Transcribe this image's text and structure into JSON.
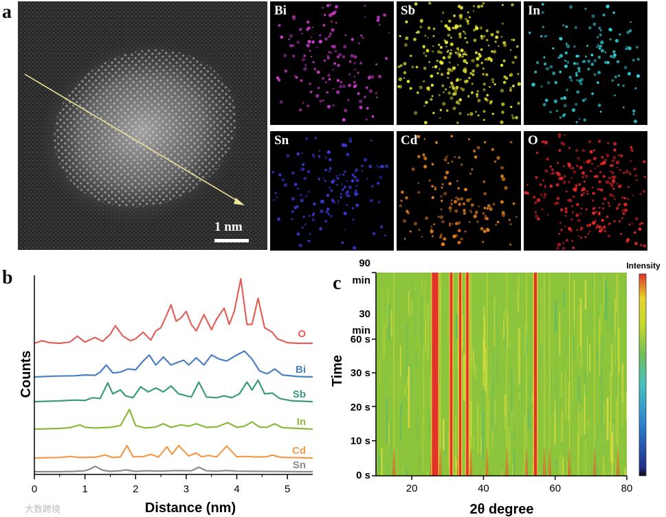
{
  "panel_labels": {
    "a": "a",
    "b": "b",
    "c": "c"
  },
  "panel_a": {
    "scale_bar_label": "1 nm",
    "maps": [
      {
        "element": "Bi",
        "color": "#d23cd2"
      },
      {
        "element": "Sb",
        "color": "#e6e632"
      },
      {
        "element": "In",
        "color": "#32d2dc"
      },
      {
        "element": "Sn",
        "color": "#3c3cdc"
      },
      {
        "element": "Cd",
        "color": "#e6821e"
      },
      {
        "element": "O",
        "color": "#e62828"
      }
    ]
  },
  "chart_data": [
    {
      "type": "line",
      "panel": "b",
      "title": "",
      "xlabel": "Distance (nm)",
      "ylabel": "Counts",
      "xlim": [
        0,
        5.5
      ],
      "xticks": [
        "0",
        "1",
        "2",
        "3",
        "4",
        "5"
      ],
      "series": [
        {
          "name": "O",
          "color": "#e0605a",
          "x": [
            0,
            0.15,
            0.3,
            0.5,
            0.7,
            0.85,
            1.0,
            1.2,
            1.35,
            1.5,
            1.6,
            1.75,
            1.9,
            2.0,
            2.15,
            2.3,
            2.4,
            2.5,
            2.6,
            2.7,
            2.8,
            2.9,
            3.0,
            3.1,
            3.2,
            3.35,
            3.5,
            3.6,
            3.75,
            3.85,
            3.95,
            4.08,
            4.2,
            4.3,
            4.42,
            4.55,
            4.7,
            4.8,
            5.0,
            5.2,
            5.5
          ],
          "y": [
            0.01,
            0.05,
            0.02,
            0.01,
            0.03,
            0.12,
            0.03,
            0.1,
            0.04,
            0.15,
            0.28,
            0.12,
            0.05,
            0.08,
            0.18,
            0.06,
            0.2,
            0.25,
            0.42,
            0.6,
            0.35,
            0.4,
            0.5,
            0.3,
            0.2,
            0.45,
            0.22,
            0.38,
            0.55,
            0.3,
            0.5,
            1.0,
            0.3,
            0.3,
            0.7,
            0.25,
            0.18,
            0.08,
            0.02,
            0.01,
            0.01
          ]
        },
        {
          "name": "Bi",
          "color": "#4a7fc4",
          "x": [
            0,
            0.4,
            0.8,
            1.0,
            1.2,
            1.3,
            1.42,
            1.55,
            1.7,
            1.85,
            2.0,
            2.15,
            2.27,
            2.4,
            2.55,
            2.7,
            2.8,
            2.95,
            3.05,
            3.2,
            3.35,
            3.5,
            3.65,
            3.8,
            4.0,
            4.15,
            4.3,
            4.45,
            4.6,
            4.75,
            4.9,
            5.2,
            5.5
          ],
          "y": [
            0,
            0.02,
            0.03,
            0.05,
            0.04,
            0.12,
            0.3,
            0.1,
            0.12,
            0.2,
            0.18,
            0.4,
            0.55,
            0.3,
            0.5,
            0.3,
            0.35,
            0.42,
            0.3,
            0.48,
            0.3,
            0.55,
            0.45,
            0.4,
            0.55,
            0.65,
            0.45,
            0.15,
            0.08,
            0.2,
            0.05,
            0.01,
            0
          ]
        },
        {
          "name": "Sb",
          "color": "#3a9a7a",
          "x": [
            0,
            0.5,
            0.8,
            1.0,
            1.15,
            1.3,
            1.45,
            1.55,
            1.7,
            1.8,
            1.95,
            2.1,
            2.25,
            2.4,
            2.55,
            2.7,
            2.85,
            3.0,
            3.1,
            3.25,
            3.4,
            3.6,
            3.75,
            3.9,
            4.05,
            4.2,
            4.3,
            4.42,
            4.55,
            4.7,
            4.85,
            5.1,
            5.5
          ],
          "y": [
            0,
            0.02,
            0.04,
            0.03,
            0.1,
            0.08,
            0.48,
            0.2,
            0.3,
            0.15,
            0.1,
            0.38,
            0.25,
            0.35,
            0.25,
            0.4,
            0.2,
            0.15,
            0.12,
            0.5,
            0.12,
            0.1,
            0.15,
            0.1,
            0.2,
            0.5,
            0.3,
            0.55,
            0.2,
            0.22,
            0.08,
            0.02,
            0
          ]
        },
        {
          "name": "In",
          "color": "#8cb83c",
          "x": [
            0,
            0.5,
            0.7,
            0.9,
            1.0,
            1.2,
            1.5,
            1.7,
            1.88,
            2.0,
            2.2,
            2.4,
            2.55,
            2.7,
            2.9,
            3.05,
            3.2,
            3.4,
            3.6,
            3.82,
            4.0,
            4.15,
            4.3,
            4.45,
            4.6,
            4.75,
            4.9,
            5.2,
            5.5
          ],
          "y": [
            0,
            0.02,
            0.04,
            0.12,
            0.05,
            0.03,
            0.05,
            0.1,
            0.55,
            0.1,
            0.03,
            0.06,
            0.15,
            0.05,
            0.12,
            0.08,
            0.15,
            0.05,
            0.06,
            0.18,
            0.05,
            0.08,
            0.2,
            0.06,
            0.05,
            0.15,
            0.04,
            0.02,
            0
          ]
        },
        {
          "name": "Cd",
          "color": "#f09a4a",
          "x": [
            0,
            0.5,
            0.7,
            0.9,
            1.2,
            1.4,
            1.55,
            1.7,
            1.83,
            1.95,
            2.15,
            2.3,
            2.45,
            2.62,
            2.72,
            2.85,
            3.05,
            3.2,
            3.3,
            3.45,
            3.6,
            3.8,
            4.0,
            4.2,
            4.4,
            4.6,
            4.7,
            4.85,
            5.0,
            5.5
          ],
          "y": [
            0,
            0.02,
            0.06,
            0.02,
            0.03,
            0.12,
            0.02,
            0.04,
            0.5,
            0.05,
            0.05,
            0.15,
            0.03,
            0.45,
            0.15,
            0.5,
            0.08,
            0.2,
            0.05,
            0.1,
            0.04,
            0.48,
            0.05,
            0.06,
            0.04,
            0.05,
            0.12,
            0.03,
            0.02,
            0
          ]
        },
        {
          "name": "Sn",
          "color": "#8a8a8a",
          "x": [
            0,
            0.5,
            0.8,
            1.0,
            1.1,
            1.2,
            1.35,
            1.5,
            1.7,
            1.8,
            2.0,
            2.2,
            2.5,
            2.8,
            3.1,
            3.25,
            3.4,
            3.6,
            3.8,
            4.0,
            4.3,
            4.8,
            5.2,
            5.5
          ],
          "y": [
            0,
            0,
            0.02,
            0.05,
            0.15,
            0.3,
            0.08,
            0.02,
            0.05,
            0.1,
            0.02,
            0.05,
            0.03,
            0.06,
            0.05,
            0.25,
            0.05,
            0.03,
            0.06,
            0.03,
            0.02,
            0.01,
            0,
            0
          ]
        }
      ]
    },
    {
      "type": "heatmap",
      "panel": "c",
      "title": "",
      "xlabel": "2θ degree",
      "ylabel": "Time",
      "xlim": [
        10,
        80
      ],
      "xticks": [
        "20",
        "40",
        "60",
        "80"
      ],
      "yticks": [
        "0 s",
        "10 s",
        "20 s",
        "30 s",
        "60 s",
        "30",
        "min",
        "90",
        "min"
      ],
      "colorbar_label": "Intensity",
      "colorbar_colors": [
        "#0b0b14",
        "#1f2d8a",
        "#2a7fcf",
        "#46c2c2",
        "#6fc05a",
        "#c6d92a",
        "#e5d62a",
        "#e2322a"
      ],
      "background_color": "#8cc43c",
      "strong_peaks_2theta": [
        26.5,
        31.0,
        33.5,
        35.5,
        54.5
      ],
      "weak_peaks_2theta": [
        15.0,
        25.5,
        28.0,
        33.0,
        36.5,
        41.0,
        46.5,
        52.0,
        57.0,
        58.5,
        64.0,
        71.0,
        77.5
      ]
    }
  ],
  "watermark": "大数跨境"
}
